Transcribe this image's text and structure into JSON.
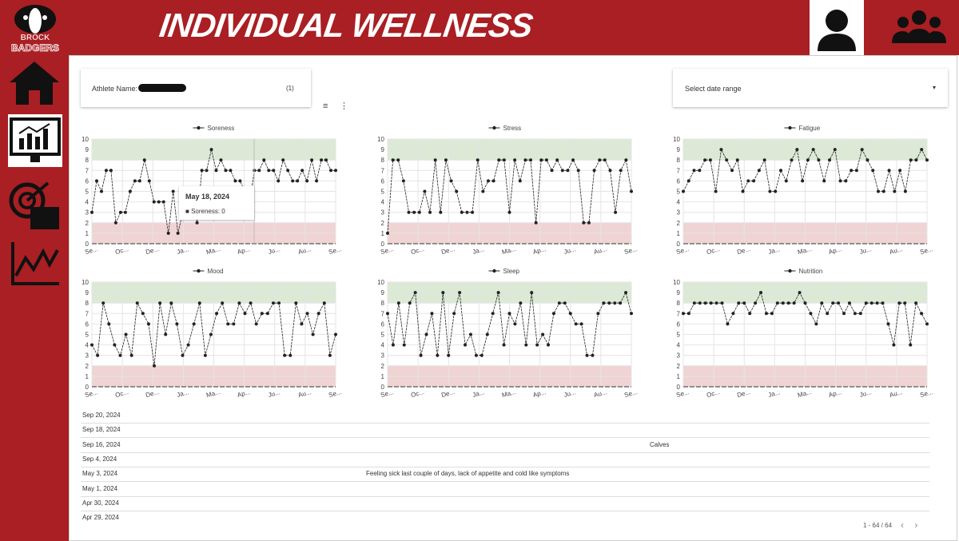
{
  "header": {
    "title": "INDIVIDUAL WELLNESS",
    "logo_top": "BROCK",
    "logo_bottom": "BADGERS"
  },
  "filters": {
    "athlete_label": "Athlete Name:",
    "athlete_count": "(1)",
    "date_range": "Select date range"
  },
  "tooltip": {
    "date": "May 18, 2024",
    "label": "Soreness: 0"
  },
  "chart_data": [
    {
      "type": "line",
      "series": [
        {
          "name": "Soreness",
          "color": "#222222",
          "values": [
            3,
            6,
            5,
            7,
            7,
            2,
            3,
            3,
            5,
            6,
            6,
            8,
            6,
            4,
            4,
            4,
            1,
            5,
            1,
            3,
            5,
            5,
            2,
            7,
            7,
            9,
            7,
            8,
            7,
            7,
            6,
            6,
            5,
            4,
            7,
            7,
            8,
            7,
            7,
            6,
            8,
            7,
            6,
            6,
            7,
            6,
            8,
            6,
            8,
            8,
            7,
            7
          ]
        }
      ],
      "ylim": [
        0,
        10
      ],
      "yticks": [
        0,
        1,
        2,
        3,
        4,
        5,
        6,
        7,
        8,
        9,
        10
      ],
      "x_tick_labels": [
        "Se...",
        "Oc...",
        "De...",
        "Ja...",
        "Ma...",
        "Ap...",
        "Ju...",
        "Au...",
        "Se..."
      ],
      "bands": [
        {
          "from": 8,
          "to": 10,
          "color": "#dbe9d5"
        },
        {
          "from": 0,
          "to": 2,
          "color": "#f0d3d3"
        }
      ]
    },
    {
      "type": "line",
      "series": [
        {
          "name": "Stress",
          "color": "#222222",
          "values": [
            1,
            8,
            8,
            6,
            3,
            3,
            3,
            5,
            3,
            8,
            3,
            8,
            6,
            5,
            3,
            3,
            3,
            8,
            5,
            6,
            6,
            8,
            8,
            3,
            8,
            6,
            8,
            8,
            2,
            8,
            8,
            7,
            8,
            7,
            7,
            8,
            7,
            2,
            2,
            7,
            8,
            8,
            7,
            3,
            7,
            8,
            5
          ]
        }
      ],
      "ylim": [
        0,
        10
      ],
      "yticks": [
        0,
        1,
        2,
        3,
        4,
        5,
        6,
        7,
        8,
        9,
        10
      ],
      "x_tick_labels": [
        "Se...",
        "Oc...",
        "De...",
        "Ja...",
        "Ma...",
        "Ap...",
        "Ju...",
        "Au...",
        "Se..."
      ],
      "bands": [
        {
          "from": 8,
          "to": 10,
          "color": "#dbe9d5"
        },
        {
          "from": 0,
          "to": 2,
          "color": "#f0d3d3"
        }
      ]
    },
    {
      "type": "line",
      "series": [
        {
          "name": "Fatigue",
          "color": "#222222",
          "values": [
            5,
            6,
            7,
            7,
            8,
            8,
            5,
            9,
            8,
            7,
            8,
            5,
            6,
            6,
            7,
            8,
            5,
            5,
            7,
            6,
            8,
            9,
            6,
            8,
            9,
            8,
            6,
            8,
            9,
            6,
            6,
            7,
            7,
            9,
            8,
            7,
            5,
            5,
            7,
            5,
            7,
            5,
            8,
            8,
            9,
            8
          ]
        }
      ],
      "ylim": [
        0,
        10
      ],
      "yticks": [
        0,
        1,
        2,
        3,
        4,
        5,
        6,
        7,
        8,
        9,
        10
      ],
      "x_tick_labels": [
        "Se...",
        "Oc...",
        "De...",
        "Ja...",
        "Ma...",
        "Ap...",
        "Ju...",
        "Au...",
        "Se..."
      ],
      "bands": [
        {
          "from": 8,
          "to": 10,
          "color": "#dbe9d5"
        },
        {
          "from": 0,
          "to": 2,
          "color": "#f0d3d3"
        }
      ]
    },
    {
      "type": "line",
      "series": [
        {
          "name": "Mood",
          "color": "#222222",
          "values": [
            4,
            3,
            8,
            6,
            4,
            3,
            5,
            3,
            8,
            7,
            6,
            2,
            8,
            5,
            8,
            6,
            3,
            4,
            6,
            8,
            3,
            5,
            7,
            8,
            6,
            6,
            8,
            7,
            8,
            6,
            7,
            7,
            8,
            8,
            3,
            3,
            8,
            6,
            7,
            5,
            7,
            8,
            3,
            5
          ]
        }
      ],
      "ylim": [
        0,
        10
      ],
      "yticks": [
        0,
        1,
        2,
        3,
        4,
        5,
        6,
        7,
        8,
        9,
        10
      ],
      "x_tick_labels": [
        "Se...",
        "Oc...",
        "De...",
        "Ja...",
        "Ma...",
        "Ap...",
        "Ju...",
        "Au...",
        "Se..."
      ],
      "bands": [
        {
          "from": 8,
          "to": 10,
          "color": "#dbe9d5"
        },
        {
          "from": 0,
          "to": 2,
          "color": "#f0d3d3"
        }
      ]
    },
    {
      "type": "line",
      "series": [
        {
          "name": "Sleep",
          "color": "#222222",
          "values": [
            7,
            4,
            8,
            4,
            8,
            9,
            3,
            5,
            7,
            3,
            9,
            3,
            7,
            9,
            4,
            5,
            3,
            3,
            5,
            7,
            9,
            4,
            7,
            6,
            8,
            4,
            9,
            4,
            5,
            4,
            7,
            8,
            8,
            7,
            6,
            6,
            3,
            3,
            7,
            8,
            8,
            8,
            8,
            9,
            7
          ]
        }
      ],
      "ylim": [
        0,
        10
      ],
      "yticks": [
        0,
        1,
        2,
        3,
        4,
        5,
        6,
        7,
        8,
        9,
        10
      ],
      "x_tick_labels": [
        "Se...",
        "Oc...",
        "De...",
        "Ja...",
        "Ma...",
        "Ap...",
        "Ju...",
        "Au...",
        "Se..."
      ],
      "bands": [
        {
          "from": 8,
          "to": 10,
          "color": "#dbe9d5"
        },
        {
          "from": 0,
          "to": 2,
          "color": "#f0d3d3"
        }
      ]
    },
    {
      "type": "line",
      "series": [
        {
          "name": "Nutrition",
          "color": "#222222",
          "values": [
            7,
            7,
            8,
            8,
            8,
            8,
            8,
            8,
            6,
            7,
            8,
            8,
            7,
            8,
            9,
            7,
            7,
            8,
            8,
            8,
            8,
            9,
            8,
            7,
            6,
            8,
            7,
            8,
            8,
            7,
            8,
            7,
            7,
            8,
            8,
            8,
            8,
            6,
            4,
            8,
            8,
            4,
            8,
            7,
            6
          ]
        }
      ],
      "ylim": [
        0,
        10
      ],
      "yticks": [
        0,
        1,
        2,
        3,
        4,
        5,
        6,
        7,
        8,
        9,
        10
      ],
      "x_tick_labels": [
        "Se...",
        "Oc...",
        "De...",
        "Ja...",
        "Ma...",
        "Ap...",
        "Ju...",
        "Au...",
        "Se..."
      ],
      "bands": [
        {
          "from": 8,
          "to": 10,
          "color": "#dbe9d5"
        },
        {
          "from": 0,
          "to": 2,
          "color": "#f0d3d3"
        }
      ]
    }
  ],
  "table": {
    "rows": [
      {
        "date": "Sep 20, 2024"
      },
      {
        "date": "Sep 18, 2024"
      },
      {
        "date": "Sep 16, 2024",
        "area": "Calves"
      },
      {
        "date": "Sep 4, 2024"
      },
      {
        "date": "May 3, 2024",
        "comment": "Feeling sick last couple of days, lack of appetite and cold like symptoms"
      },
      {
        "date": "May 1, 2024"
      },
      {
        "date": "Apr 30, 2024"
      },
      {
        "date": "Apr 29, 2024"
      }
    ]
  },
  "pagination": "1 - 64 / 64"
}
